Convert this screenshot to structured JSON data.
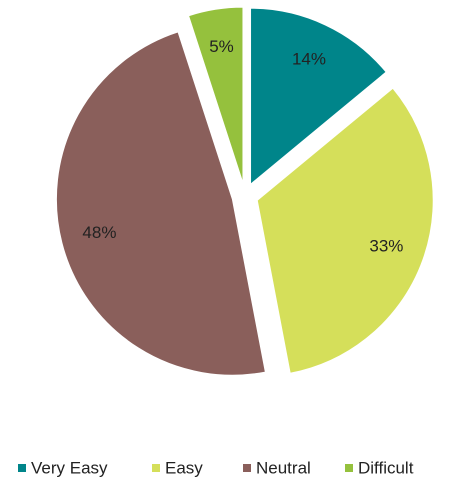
{
  "chart_data": {
    "type": "pie",
    "categories": [
      "Very Easy",
      "Easy",
      "Neutral",
      "Difficult"
    ],
    "values": [
      14,
      33,
      48,
      5
    ],
    "value_labels": [
      "14%",
      "33%",
      "48%",
      "5%"
    ],
    "colors": [
      "#00858a",
      "#d5df5a",
      "#8a5f5b",
      "#95c13d"
    ],
    "legend": "bottom"
  }
}
